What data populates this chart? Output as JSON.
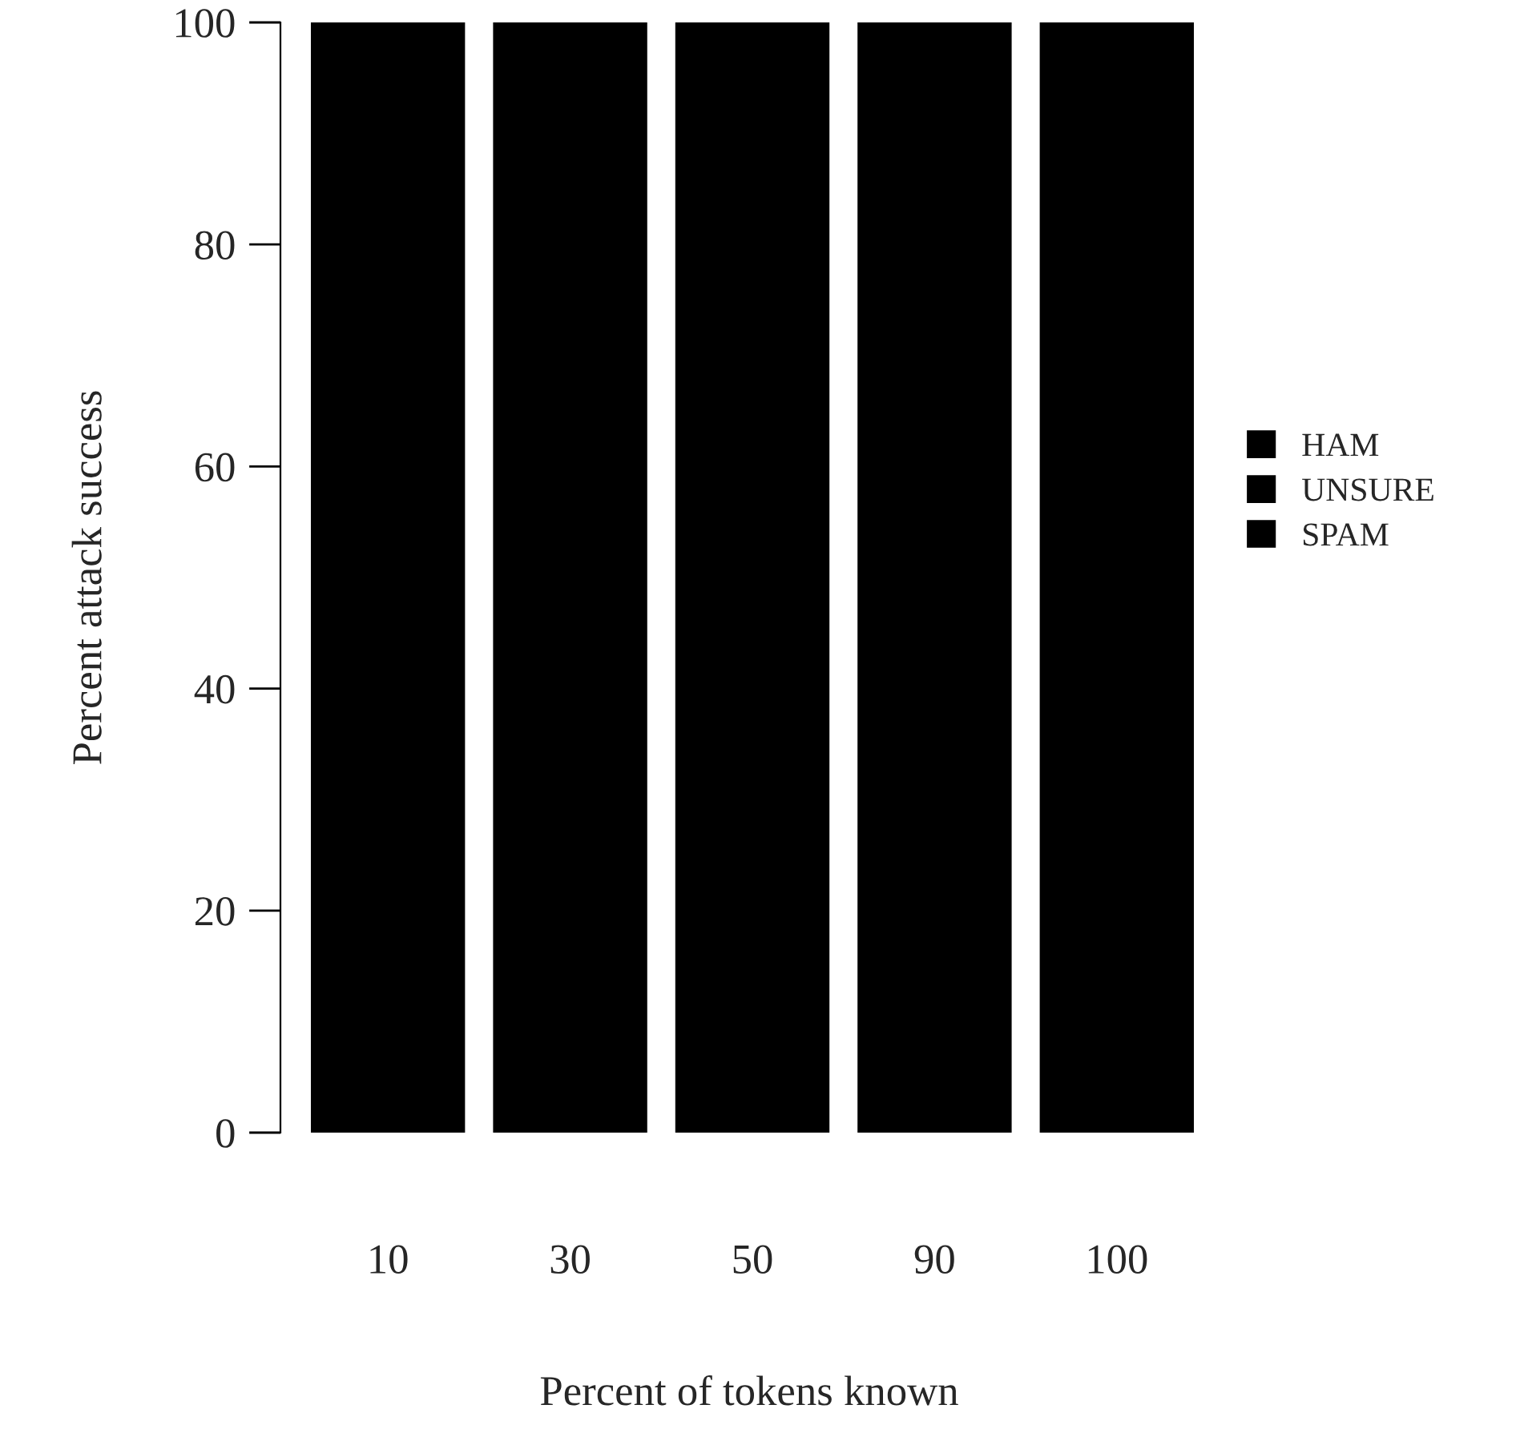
{
  "chart_data": {
    "type": "bar",
    "stacked": true,
    "xlabel": "Percent of tokens known",
    "ylabel": "Percent attack success",
    "categories": [
      "10",
      "30",
      "50",
      "90",
      "100"
    ],
    "series": [
      {
        "name": "SPAM",
        "color": "#000000",
        "values": [
          100,
          100,
          100,
          100,
          100
        ]
      },
      {
        "name": "UNSURE",
        "color": "#000000",
        "values": [
          null,
          null,
          null,
          null,
          null
        ]
      },
      {
        "name": "HAM",
        "color": "#000000",
        "values": [
          null,
          null,
          null,
          null,
          null
        ]
      }
    ],
    "ylim": [
      0,
      100
    ],
    "yticks": [
      0,
      20,
      40,
      60,
      80,
      100
    ],
    "grid": false,
    "legend": "right"
  }
}
